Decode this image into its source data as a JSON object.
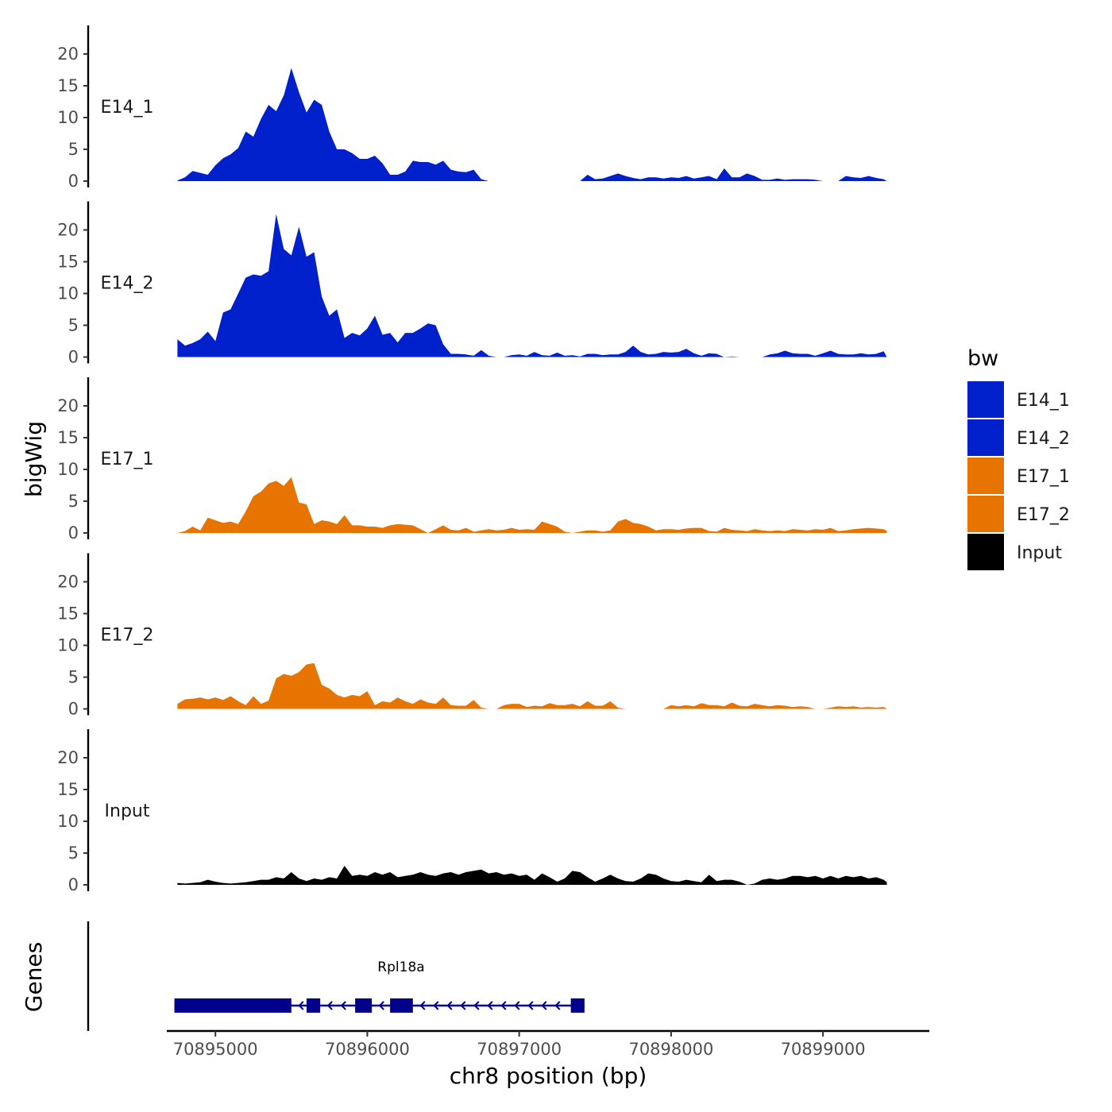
{
  "chart_data": {
    "type": "area",
    "title": "",
    "xlabel": "chr8 position (bp)",
    "ylabel": "bigWig",
    "genes_label": "Genes",
    "xlim": [
      70894680,
      70899700
    ],
    "ylim": [
      0,
      24
    ],
    "y_ticks": [
      "0",
      "5",
      "10",
      "15",
      "20"
    ],
    "y_tick_values": [
      0,
      5,
      10,
      15,
      20
    ],
    "x_ticks": [
      "70895000",
      "70896000",
      "70897000",
      "70898000",
      "70899000"
    ],
    "x_tick_values": [
      70895000,
      70896000,
      70897000,
      70898000,
      70899000
    ],
    "legend": {
      "title": "bw",
      "position": "right",
      "entries": [
        {
          "label": "E14_1",
          "color": "#0020CC"
        },
        {
          "label": "E14_2",
          "color": "#0020CC"
        },
        {
          "label": "E17_1",
          "color": "#E87400"
        },
        {
          "label": "E17_2",
          "color": "#E87400"
        },
        {
          "label": "Input",
          "color": "#000000"
        }
      ]
    },
    "series": [
      {
        "name": "E14_1",
        "label": "E14_1",
        "color": "#0020CC",
        "x": [
          70894750,
          70894800,
          70894850,
          70894900,
          70894950,
          70895000,
          70895050,
          70895100,
          70895150,
          70895200,
          70895250,
          70895300,
          70895350,
          70895400,
          70895450,
          70895500,
          70895550,
          70895600,
          70895650,
          70895700,
          70895750,
          70895800,
          70895850,
          70895900,
          70895950,
          70896000,
          70896050,
          70896100,
          70896150,
          70896200,
          70896250,
          70896300,
          70896350,
          70896400,
          70896450,
          70896500,
          70896550,
          70896600,
          70896650,
          70896700,
          70896750,
          70896800,
          70896850,
          70896900,
          70896950,
          70897000,
          70897050,
          70897100,
          70897150,
          70897200,
          70897250,
          70897300,
          70897350,
          70897400,
          70897450,
          70897500,
          70897550,
          70897600,
          70897650,
          70897700,
          70897750,
          70897800,
          70897850,
          70897900,
          70897950,
          70898000,
          70898050,
          70898100,
          70898150,
          70898200,
          70898250,
          70898300,
          70898350,
          70898400,
          70898450,
          70898500,
          70898550,
          70898600,
          70898650,
          70898700,
          70898750,
          70898800,
          70898850,
          70898900,
          70898950,
          70899000,
          70899050,
          70899100,
          70899150,
          70899200,
          70899250,
          70899300,
          70899350,
          70899400,
          70899420
        ],
        "y": [
          0.1,
          0.6,
          1.6,
          1.3,
          1.0,
          2.5,
          3.6,
          4.2,
          5.2,
          7.8,
          7.0,
          9.8,
          12.0,
          11.0,
          13.5,
          17.8,
          14.0,
          10.8,
          12.8,
          12.0,
          7.8,
          5.0,
          5.0,
          4.4,
          3.5,
          3.5,
          4.0,
          2.8,
          1.0,
          1.0,
          1.5,
          3.2,
          3.0,
          3.0,
          2.6,
          3.2,
          1.8,
          1.5,
          1.4,
          1.8,
          0.3,
          0.0,
          0.0,
          0.0,
          0.0,
          0.0,
          0.0,
          0.0,
          0.0,
          0.0,
          0.0,
          0.0,
          0.0,
          0.0,
          1.0,
          0.3,
          0.4,
          0.8,
          1.2,
          0.8,
          0.5,
          0.3,
          0.6,
          0.6,
          0.4,
          0.6,
          0.5,
          0.8,
          0.4,
          0.6,
          0.8,
          0.3,
          2.0,
          0.6,
          0.6,
          1.2,
          0.8,
          0.2,
          0.2,
          0.4,
          0.2,
          0.3,
          0.3,
          0.3,
          0.2,
          0.0,
          0.0,
          0.0,
          0.8,
          0.6,
          0.5,
          0.8,
          0.5,
          0.3,
          0.0
        ]
      },
      {
        "name": "E14_2",
        "label": "E14_2",
        "color": "#0020CC",
        "x": [
          70894750,
          70894800,
          70894850,
          70894900,
          70894950,
          70895000,
          70895050,
          70895100,
          70895150,
          70895200,
          70895250,
          70895300,
          70895350,
          70895400,
          70895450,
          70895500,
          70895550,
          70895600,
          70895650,
          70895700,
          70895750,
          70895800,
          70895850,
          70895900,
          70895950,
          70896000,
          70896050,
          70896100,
          70896150,
          70896200,
          70896250,
          70896300,
          70896350,
          70896400,
          70896450,
          70896500,
          70896550,
          70896600,
          70896650,
          70896700,
          70896750,
          70896800,
          70896850,
          70896900,
          70896950,
          70897000,
          70897050,
          70897100,
          70897150,
          70897200,
          70897250,
          70897300,
          70897350,
          70897400,
          70897450,
          70897500,
          70897550,
          70897600,
          70897650,
          70897700,
          70897750,
          70897800,
          70897850,
          70897900,
          70897950,
          70898000,
          70898050,
          70898100,
          70898150,
          70898200,
          70898250,
          70898300,
          70898350,
          70898400,
          70898450,
          70898500,
          70898550,
          70898600,
          70898650,
          70898700,
          70898750,
          70898800,
          70898850,
          70898900,
          70898950,
          70899000,
          70899050,
          70899100,
          70899150,
          70899200,
          70899250,
          70899300,
          70899350,
          70899400,
          70899420
        ],
        "y": [
          2.8,
          1.8,
          2.2,
          2.8,
          4.0,
          2.5,
          7.0,
          7.5,
          10.0,
          12.5,
          13.0,
          12.8,
          13.5,
          22.5,
          17.0,
          16.0,
          20.5,
          15.8,
          16.5,
          9.5,
          6.5,
          7.5,
          3.0,
          3.8,
          3.4,
          4.5,
          6.5,
          3.5,
          3.8,
          2.3,
          3.8,
          3.8,
          4.5,
          5.3,
          5.0,
          2.0,
          0.5,
          0.5,
          0.4,
          0.2,
          1.1,
          0.2,
          0.0,
          0.0,
          0.3,
          0.4,
          0.2,
          0.8,
          0.3,
          0.2,
          0.7,
          0.2,
          0.3,
          0.1,
          0.5,
          0.5,
          0.3,
          0.4,
          0.4,
          0.8,
          1.8,
          0.8,
          0.4,
          0.5,
          0.8,
          0.7,
          0.8,
          1.3,
          0.6,
          0.2,
          0.6,
          0.5,
          0.0,
          0.1,
          0.0,
          0.0,
          0.0,
          0.0,
          0.4,
          0.6,
          1.0,
          0.6,
          0.5,
          0.5,
          0.2,
          0.6,
          1.0,
          0.5,
          0.4,
          0.4,
          0.6,
          0.4,
          0.5,
          0.9,
          0.0
        ]
      },
      {
        "name": "E17_1",
        "label": "E17_1",
        "color": "#E87400",
        "x": [
          70894750,
          70894800,
          70894850,
          70894900,
          70894950,
          70895000,
          70895050,
          70895100,
          70895150,
          70895200,
          70895250,
          70895300,
          70895350,
          70895400,
          70895450,
          70895500,
          70895550,
          70895600,
          70895650,
          70895700,
          70895750,
          70895800,
          70895850,
          70895900,
          70895950,
          70896000,
          70896050,
          70896100,
          70896150,
          70896200,
          70896250,
          70896300,
          70896350,
          70896400,
          70896450,
          70896500,
          70896550,
          70896600,
          70896650,
          70896700,
          70896750,
          70896800,
          70896850,
          70896900,
          70896950,
          70897000,
          70897050,
          70897100,
          70897150,
          70897200,
          70897250,
          70897300,
          70897350,
          70897400,
          70897450,
          70897500,
          70897550,
          70897600,
          70897650,
          70897700,
          70897750,
          70897800,
          70897850,
          70897900,
          70897950,
          70898000,
          70898050,
          70898100,
          70898150,
          70898200,
          70898250,
          70898300,
          70898350,
          70898400,
          70898450,
          70898500,
          70898550,
          70898600,
          70898650,
          70898700,
          70898750,
          70898800,
          70898850,
          70898900,
          70898950,
          70899000,
          70899050,
          70899100,
          70899150,
          70899200,
          70899250,
          70899300,
          70899350,
          70899400,
          70899420
        ],
        "y": [
          0.0,
          0.3,
          1.0,
          0.4,
          2.4,
          2.0,
          1.6,
          1.8,
          1.4,
          3.4,
          5.8,
          6.5,
          7.8,
          8.2,
          7.4,
          8.8,
          4.8,
          4.5,
          1.4,
          2.0,
          1.8,
          1.4,
          2.8,
          1.2,
          1.2,
          1.0,
          1.0,
          0.8,
          1.2,
          1.4,
          1.3,
          1.2,
          0.6,
          0.0,
          0.6,
          1.2,
          0.5,
          0.4,
          0.8,
          0.2,
          0.4,
          0.6,
          0.4,
          0.5,
          0.8,
          0.5,
          0.6,
          0.5,
          1.8,
          1.4,
          1.0,
          0.2,
          0.0,
          0.2,
          0.4,
          0.4,
          0.2,
          0.4,
          1.8,
          2.2,
          1.6,
          1.4,
          1.0,
          0.4,
          0.6,
          0.6,
          0.5,
          0.7,
          0.8,
          0.8,
          0.3,
          0.2,
          0.8,
          0.5,
          0.4,
          0.3,
          0.6,
          0.4,
          0.3,
          0.4,
          0.3,
          0.6,
          0.5,
          0.4,
          0.6,
          0.5,
          0.8,
          0.3,
          0.4,
          0.6,
          0.7,
          0.8,
          0.7,
          0.6,
          0.3
        ]
      },
      {
        "name": "E17_2",
        "label": "E17_2",
        "color": "#E87400",
        "x": [
          70894750,
          70894800,
          70894850,
          70894900,
          70894950,
          70895000,
          70895050,
          70895100,
          70895150,
          70895200,
          70895250,
          70895300,
          70895350,
          70895400,
          70895450,
          70895500,
          70895550,
          70895600,
          70895650,
          70895700,
          70895750,
          70895800,
          70895850,
          70895900,
          70895950,
          70896000,
          70896050,
          70896100,
          70896150,
          70896200,
          70896250,
          70896300,
          70896350,
          70896400,
          70896450,
          70896500,
          70896550,
          70896600,
          70896650,
          70896700,
          70896750,
          70896800,
          70896850,
          70896900,
          70896950,
          70897000,
          70897050,
          70897100,
          70897150,
          70897200,
          70897250,
          70897300,
          70897350,
          70897400,
          70897450,
          70897500,
          70897550,
          70897600,
          70897650,
          70897700,
          70897750,
          70897800,
          70897850,
          70897900,
          70897950,
          70898000,
          70898050,
          70898100,
          70898150,
          70898200,
          70898250,
          70898300,
          70898350,
          70898400,
          70898450,
          70898500,
          70898550,
          70898600,
          70898650,
          70898700,
          70898750,
          70898800,
          70898850,
          70898900,
          70898950,
          70899000,
          70899050,
          70899100,
          70899150,
          70899200,
          70899250,
          70899300,
          70899350,
          70899400,
          70899420
        ],
        "y": [
          0.8,
          1.5,
          1.6,
          1.8,
          1.5,
          1.8,
          1.4,
          2.0,
          1.2,
          0.6,
          2.0,
          0.8,
          1.3,
          4.8,
          5.5,
          5.2,
          5.8,
          7.0,
          7.2,
          3.8,
          3.2,
          2.2,
          1.8,
          2.2,
          2.0,
          2.8,
          0.6,
          1.2,
          1.0,
          1.8,
          1.2,
          0.8,
          1.5,
          1.0,
          0.8,
          1.8,
          0.6,
          0.5,
          0.5,
          1.4,
          0.2,
          0.0,
          0.0,
          0.6,
          0.8,
          0.8,
          0.3,
          0.5,
          0.4,
          0.9,
          0.6,
          0.6,
          0.8,
          0.4,
          1.2,
          0.5,
          0.5,
          1.2,
          0.2,
          0.0,
          0.0,
          0.0,
          0.0,
          0.0,
          0.0,
          0.6,
          0.4,
          0.6,
          0.4,
          0.9,
          0.6,
          0.6,
          0.4,
          1.0,
          0.5,
          0.4,
          0.8,
          0.6,
          0.4,
          0.6,
          0.5,
          0.3,
          0.4,
          0.3,
          0.0,
          0.0,
          0.2,
          0.4,
          0.3,
          0.4,
          0.2,
          0.3,
          0.2,
          0.3,
          0.0
        ]
      },
      {
        "name": "Input",
        "label": "Input",
        "color": "#000000",
        "x": [
          70894750,
          70894800,
          70894850,
          70894900,
          70894950,
          70895000,
          70895050,
          70895100,
          70895150,
          70895200,
          70895250,
          70895300,
          70895350,
          70895400,
          70895450,
          70895500,
          70895550,
          70895600,
          70895650,
          70895700,
          70895750,
          70895800,
          70895850,
          70895900,
          70895950,
          70896000,
          70896050,
          70896100,
          70896150,
          70896200,
          70896250,
          70896300,
          70896350,
          70896400,
          70896450,
          70896500,
          70896550,
          70896600,
          70896650,
          70896700,
          70896750,
          70896800,
          70896850,
          70896900,
          70896950,
          70897000,
          70897050,
          70897100,
          70897150,
          70897200,
          70897250,
          70897300,
          70897350,
          70897400,
          70897450,
          70897500,
          70897550,
          70897600,
          70897650,
          70897700,
          70897750,
          70897800,
          70897850,
          70897900,
          70897950,
          70898000,
          70898050,
          70898100,
          70898150,
          70898200,
          70898250,
          70898300,
          70898350,
          70898400,
          70898450,
          70898500,
          70898550,
          70898600,
          70898650,
          70898700,
          70898750,
          70898800,
          70898850,
          70898900,
          70898950,
          70899000,
          70899050,
          70899100,
          70899150,
          70899200,
          70899250,
          70899300,
          70899350,
          70899400,
          70899420
        ],
        "y": [
          0.3,
          0.2,
          0.3,
          0.4,
          0.8,
          0.5,
          0.3,
          0.2,
          0.3,
          0.4,
          0.6,
          0.8,
          0.8,
          1.2,
          1.0,
          2.0,
          1.0,
          0.6,
          1.0,
          0.8,
          1.2,
          1.0,
          3.0,
          1.4,
          1.6,
          1.4,
          2.0,
          1.6,
          2.0,
          1.2,
          1.4,
          1.6,
          2.0,
          1.6,
          1.4,
          1.8,
          2.0,
          1.6,
          2.0,
          2.2,
          2.4,
          1.8,
          2.0,
          1.6,
          1.8,
          1.4,
          1.6,
          0.8,
          1.8,
          1.2,
          0.5,
          1.0,
          2.2,
          2.0,
          1.2,
          0.5,
          1.0,
          1.6,
          1.0,
          0.6,
          0.5,
          1.0,
          1.8,
          1.6,
          1.0,
          0.6,
          0.5,
          0.8,
          0.6,
          0.4,
          1.6,
          0.6,
          0.8,
          0.8,
          0.5,
          0.0,
          0.2,
          0.8,
          1.0,
          0.8,
          1.0,
          1.4,
          1.4,
          1.2,
          1.4,
          1.0,
          1.4,
          1.0,
          1.4,
          1.2,
          1.4,
          1.0,
          1.2,
          0.8,
          0.4
        ]
      }
    ],
    "gene": {
      "name": "Rpl18a",
      "color": "#00008B",
      "strand": "-",
      "start": 70894730,
      "end": 70897430,
      "exons": [
        [
          70894730,
          70895500
        ],
        [
          70895600,
          70895690
        ],
        [
          70895920,
          70896030
        ],
        [
          70896150,
          70896300
        ],
        [
          70897340,
          70897430
        ]
      ]
    }
  }
}
